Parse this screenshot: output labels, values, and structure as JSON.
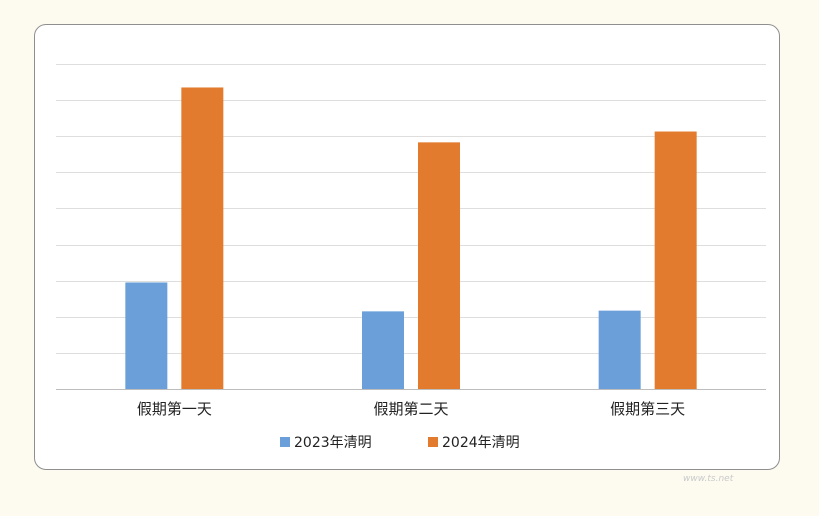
{
  "chart_data": {
    "type": "bar",
    "categories": [
      "假期第一天",
      "假期第二天",
      "假期第三天"
    ],
    "series": [
      {
        "name": "2023年清明",
        "color": "#6a9fd9",
        "values": [
          29.5,
          21.5,
          21.7
        ]
      },
      {
        "name": "2024年清明",
        "color": "#e27b2d",
        "values": [
          83.5,
          68.3,
          71.3
        ]
      }
    ],
    "ylim": [
      0,
      90
    ],
    "grid": true,
    "legend_position": "bottom",
    "title": "",
    "xlabel": "",
    "ylabel": ""
  },
  "watermark": "www.ts.net"
}
